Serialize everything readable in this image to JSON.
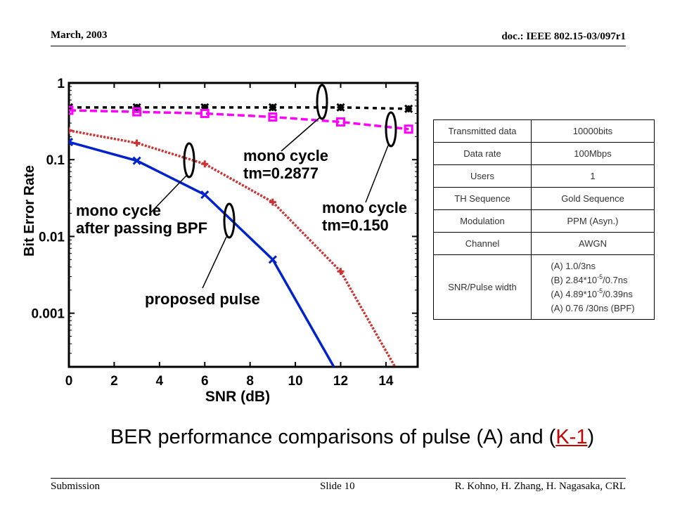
{
  "header": {
    "date": "March, 2003",
    "doc": "doc.: IEEE 802.15-03/097r1"
  },
  "footer": {
    "left": "Submission",
    "middle": "Slide 10",
    "right": "R. Kohno, H. Zhang, H. Nagasaka, CRL"
  },
  "caption": {
    "text": "BER performance comparisons of pulse (A) and (",
    "link": "K-1",
    "end": ")"
  },
  "chart_data": {
    "type": "line",
    "xlabel": "SNR (dB)",
    "ylabel": "Bit Error Rate",
    "xlim": [
      0,
      15.4
    ],
    "ylim": [
      0.0002,
      1
    ],
    "yscale": "log",
    "x_ticks": [
      0,
      2,
      4,
      6,
      8,
      10,
      12,
      14
    ],
    "y_ticks": [
      {
        "value": 1,
        "label": "1"
      },
      {
        "value": 0.1,
        "label": "0.1"
      },
      {
        "value": 0.01,
        "label": "0.01"
      },
      {
        "value": 0.001,
        "label": "0.001"
      }
    ],
    "grid": false,
    "series": [
      {
        "name": "mono cycle tm=0.2877",
        "color": "#000000",
        "marker": "asterisk",
        "dash": "6,6",
        "x": [
          0,
          3,
          6,
          9,
          12,
          15
        ],
        "y": [
          0.48,
          0.48,
          0.48,
          0.48,
          0.48,
          0.46
        ]
      },
      {
        "name": "mono cycle tm=0.150",
        "color": "#ff00ff",
        "marker": "square",
        "dash": "10,5",
        "x": [
          0,
          3,
          6,
          9,
          12,
          15
        ],
        "y": [
          0.44,
          0.42,
          0.4,
          0.36,
          0.31,
          0.25
        ]
      },
      {
        "name": "mono cycle after passing BPF",
        "color": "#cc3333",
        "marker": "plus",
        "dash": "3,2",
        "x": [
          0,
          3,
          6,
          9,
          12,
          14.4
        ],
        "y": [
          0.24,
          0.165,
          0.088,
          0.028,
          0.0035,
          0.0002
        ]
      },
      {
        "name": "proposed pulse",
        "color": "#0022cc",
        "marker": "x",
        "dash": "",
        "x": [
          0,
          3,
          6,
          9,
          11.7
        ],
        "y": [
          0.17,
          0.097,
          0.035,
          0.005,
          0.0002
        ]
      }
    ],
    "annotations": [
      {
        "lines": [
          "mono cycle",
          "tm=0.2877"
        ]
      },
      {
        "lines": [
          "mono cycle",
          "tm=0.150"
        ]
      },
      {
        "lines": [
          "mono cycle",
          "after passing BPF"
        ]
      },
      {
        "lines": [
          "proposed pulse"
        ]
      }
    ]
  },
  "params_table": {
    "rows": [
      {
        "label": "Transmitted data",
        "value": "10000bits"
      },
      {
        "label": "Data rate",
        "value": "100Mbps"
      },
      {
        "label": "Users",
        "value": "1"
      },
      {
        "label": "TH Sequence",
        "value": "Gold Sequence"
      },
      {
        "label": "Modulation",
        "value": "PPM (Asyn.)"
      },
      {
        "label": "Channel",
        "value": "AWGN"
      }
    ],
    "pulse_label": "SNR/Pulse width",
    "pulse_lines": [
      {
        "pre": "(A) 1.0/3ns",
        "sup": "",
        "post": ""
      },
      {
        "pre": "(B) 2.84*10",
        "sup": "-5",
        "post": "/0.7ns"
      },
      {
        "pre": "(A) 4.89*10",
        "sup": "-5",
        "post": "/0.39ns"
      },
      {
        "pre": "(A)  0.76 /30ns (BPF)",
        "sup": "",
        "post": ""
      }
    ]
  }
}
